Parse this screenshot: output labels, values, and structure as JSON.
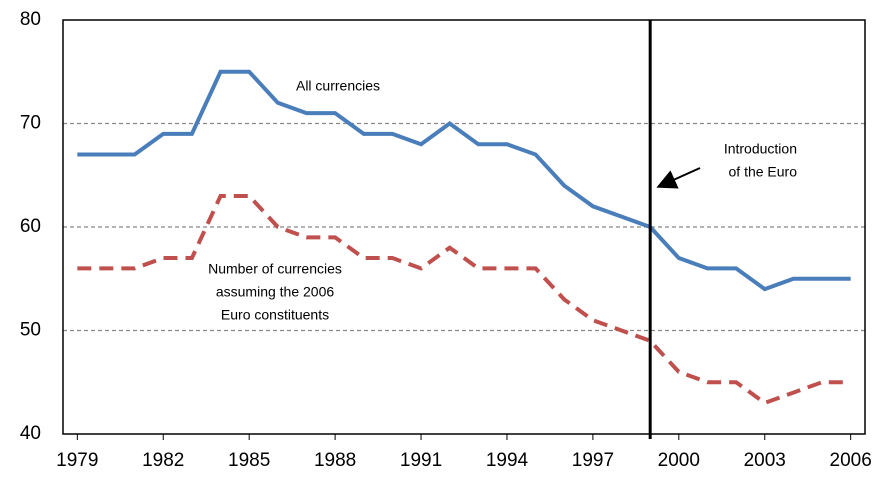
{
  "chart_data": {
    "type": "line",
    "x": [
      1979,
      1980,
      1981,
      1982,
      1983,
      1984,
      1985,
      1986,
      1987,
      1988,
      1989,
      1990,
      1991,
      1992,
      1993,
      1994,
      1995,
      1996,
      1997,
      1998,
      1999,
      2000,
      2001,
      2002,
      2003,
      2004,
      2005,
      2006
    ],
    "series": [
      {
        "color": "#4a7ebb",
        "dash": false,
        "values": [
          67,
          67,
          67,
          69,
          69,
          75,
          75,
          72,
          71,
          71,
          69,
          69,
          68,
          70,
          68,
          68,
          67,
          64,
          62,
          61,
          60,
          57,
          56,
          56,
          54,
          55,
          55,
          55
        ]
      },
      {
        "color": "#c0504d",
        "dash": true,
        "values": [
          56,
          56,
          56,
          57,
          57,
          63,
          63,
          60,
          59,
          59,
          57,
          57,
          56,
          58,
          56,
          56,
          56,
          53,
          51,
          50,
          49,
          46,
          45,
          45,
          43,
          44,
          45,
          45
        ]
      }
    ],
    "xlim": [
      1978.5,
      2006.5
    ],
    "xticks": [
      1979,
      1982,
      1985,
      1988,
      1991,
      1994,
      1997,
      2000,
      2003,
      2006
    ],
    "ylim": [
      40,
      80
    ],
    "yticks": [
      40,
      50,
      60,
      70,
      80
    ],
    "grid": true,
    "vline": 1999,
    "annotations": [
      {
        "lines": [
          "All currencies"
        ]
      },
      {
        "lines": [
          "Number of currencies",
          "assuming the 2006",
          "Euro constituents"
        ]
      },
      {
        "lines": [
          "Introduction",
          "of the Euro"
        ]
      }
    ]
  }
}
